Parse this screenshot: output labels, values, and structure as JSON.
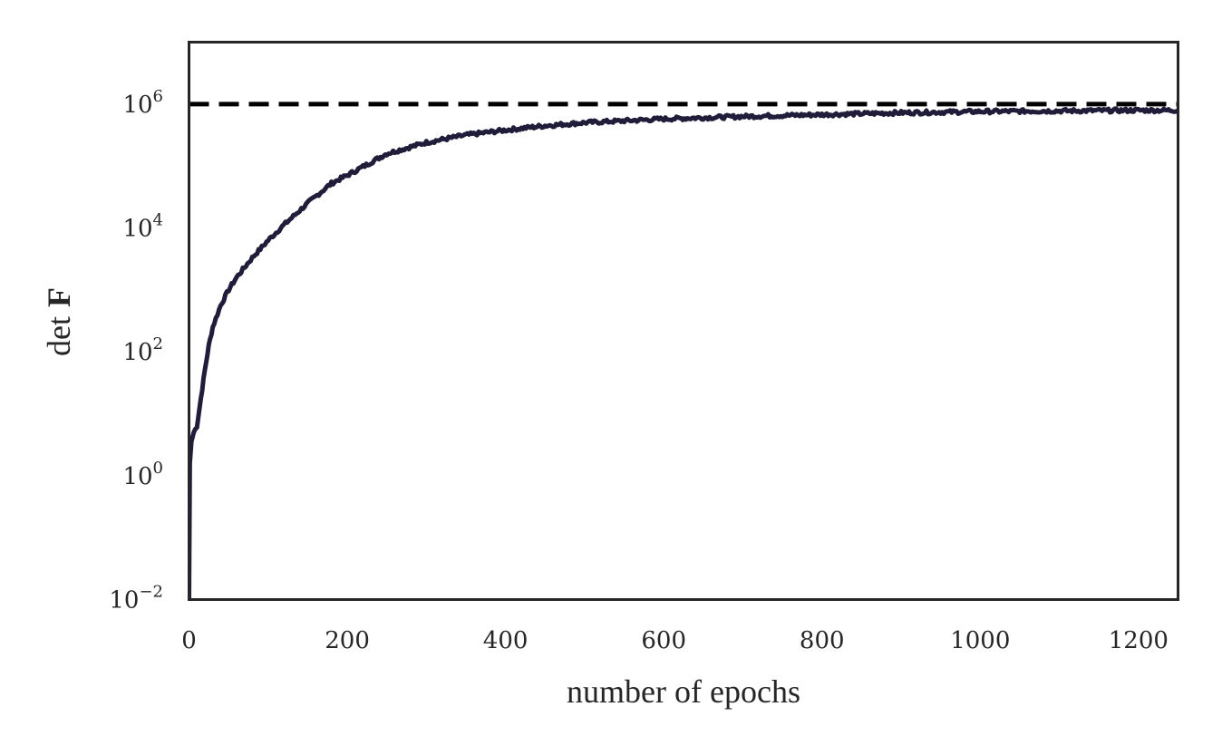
{
  "chart_data": {
    "type": "line",
    "xlabel": "number of epochs",
    "ylabel_prefix": "det",
    "ylabel_symbol": "F",
    "xlim": [
      0,
      1250
    ],
    "ylim_exponent": [
      -2,
      7
    ],
    "yscale": "log",
    "x_ticks": [
      0,
      200,
      400,
      600,
      800,
      1000,
      1200
    ],
    "x_tick_labels": [
      "0",
      "200",
      "400",
      "600",
      "800",
      "1000",
      "1200"
    ],
    "y_ticks_exponent": [
      -2,
      0,
      2,
      4,
      6
    ],
    "y_tick_base": "10",
    "y_tick_exponent_labels": [
      "−2",
      "0",
      "2",
      "4",
      "6"
    ],
    "grid": false,
    "series": [
      {
        "style": "solid",
        "color": "#1f1d3a",
        "x": [
          0,
          1,
          3,
          6,
          10,
          15,
          20,
          25,
          30,
          40,
          50,
          60,
          80,
          100,
          120,
          150,
          180,
          200,
          250,
          300,
          350,
          400,
          450,
          500,
          600,
          700,
          800,
          900,
          1000,
          1100,
          1200,
          1250
        ],
        "log10_y": [
          -2.0,
          0.2,
          0.55,
          0.7,
          0.8,
          1.25,
          1.7,
          2.1,
          2.4,
          2.75,
          3.0,
          3.2,
          3.52,
          3.8,
          4.05,
          4.4,
          4.72,
          4.85,
          5.2,
          5.38,
          5.5,
          5.58,
          5.65,
          5.7,
          5.76,
          5.8,
          5.83,
          5.86,
          5.88,
          5.89,
          5.9,
          5.9
        ]
      },
      {
        "style": "dashed",
        "color": "#000000",
        "x": [
          0,
          1250
        ],
        "log10_y": [
          6.0,
          6.0
        ]
      }
    ]
  }
}
